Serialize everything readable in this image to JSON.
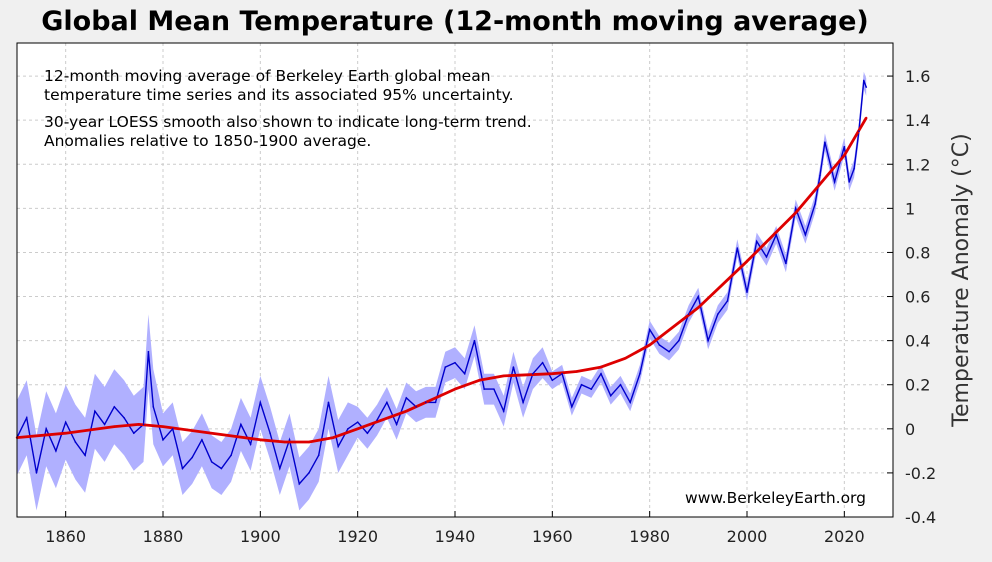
{
  "chart_data": {
    "type": "line",
    "title": "Global Mean Temperature (12-month moving average)",
    "ylabel": "Temperature Anomaly (°C)",
    "xlabel": "",
    "xlim": [
      1850,
      2030
    ],
    "ylim": [
      -0.4,
      1.75
    ],
    "x_ticks": [
      1860,
      1880,
      1900,
      1920,
      1940,
      1960,
      1980,
      2000,
      2020
    ],
    "x_tick_labels": [
      "1860",
      "1880",
      "1900",
      "1920",
      "1940",
      "1960",
      "1980",
      "2000",
      "2020"
    ],
    "y_ticks": [
      -0.4,
      -0.2,
      0,
      0.2,
      0.4,
      0.6,
      0.8,
      1,
      1.2,
      1.4,
      1.6
    ],
    "y_tick_labels": [
      "-0.4",
      "-0.2",
      "0",
      "0.2",
      "0.4",
      "0.6",
      "0.8",
      "1",
      "1.2",
      "1.4",
      "1.6"
    ],
    "grid": true,
    "annotation_lines": [
      "12-month moving average of Berkeley Earth global mean",
      "temperature time series and its associated 95% uncertainty.",
      "30-year LOESS smooth also shown to indicate long-term trend.",
      "Anomalies relative to 1850-1900 average."
    ],
    "source_label": "www.BerkeleyEarth.org",
    "colors": {
      "series": "#0000cc",
      "uncertainty": "#b0b0ff",
      "trend": "#dd0000",
      "plot_bg": "#ffffff",
      "page_bg": "#f0f0f0",
      "grid": "#cccccc"
    },
    "series": [
      {
        "role": "moving-average",
        "x": [
          1850,
          1852,
          1854,
          1856,
          1858,
          1860,
          1862,
          1864,
          1866,
          1868,
          1870,
          1872,
          1874,
          1876,
          1877,
          1878,
          1880,
          1882,
          1884,
          1886,
          1888,
          1890,
          1892,
          1894,
          1896,
          1898,
          1900,
          1902,
          1904,
          1906,
          1908,
          1910,
          1912,
          1914,
          1916,
          1918,
          1920,
          1922,
          1924,
          1926,
          1928,
          1930,
          1932,
          1934,
          1936,
          1938,
          1940,
          1942,
          1944,
          1946,
          1948,
          1950,
          1952,
          1954,
          1956,
          1958,
          1960,
          1962,
          1964,
          1966,
          1968,
          1970,
          1972,
          1974,
          1976,
          1978,
          1980,
          1982,
          1984,
          1986,
          1988,
          1990,
          1992,
          1994,
          1996,
          1998,
          2000,
          2002,
          2004,
          2006,
          2008,
          2010,
          2012,
          2014,
          2015,
          2016,
          2018,
          2020,
          2021,
          2022,
          2023,
          2024,
          2024.5
        ],
        "y": [
          -0.04,
          0.05,
          -0.2,
          0.0,
          -0.1,
          0.03,
          -0.06,
          -0.12,
          0.08,
          0.02,
          0.1,
          0.05,
          -0.02,
          0.02,
          0.35,
          0.1,
          -0.05,
          0.0,
          -0.18,
          -0.13,
          -0.05,
          -0.15,
          -0.18,
          -0.12,
          0.02,
          -0.07,
          0.12,
          -0.02,
          -0.18,
          -0.05,
          -0.25,
          -0.2,
          -0.12,
          0.12,
          -0.08,
          0.0,
          0.03,
          -0.02,
          0.04,
          0.12,
          0.02,
          0.14,
          0.1,
          0.12,
          0.12,
          0.28,
          0.3,
          0.25,
          0.4,
          0.18,
          0.18,
          0.08,
          0.28,
          0.12,
          0.25,
          0.3,
          0.22,
          0.25,
          0.1,
          0.2,
          0.18,
          0.25,
          0.15,
          0.2,
          0.12,
          0.25,
          0.45,
          0.38,
          0.35,
          0.4,
          0.52,
          0.6,
          0.4,
          0.52,
          0.58,
          0.82,
          0.62,
          0.85,
          0.78,
          0.88,
          0.75,
          1.0,
          0.88,
          1.02,
          1.15,
          1.3,
          1.12,
          1.28,
          1.12,
          1.18,
          1.35,
          1.58,
          1.55
        ]
      },
      {
        "role": "trend",
        "x": [
          1850,
          1860,
          1870,
          1875,
          1880,
          1890,
          1900,
          1905,
          1910,
          1915,
          1920,
          1930,
          1940,
          1945,
          1950,
          1960,
          1965,
          1970,
          1975,
          1980,
          1990,
          2000,
          2010,
          2020,
          2024.5
        ],
        "y": [
          -0.04,
          -0.02,
          0.01,
          0.02,
          0.01,
          -0.02,
          -0.05,
          -0.06,
          -0.06,
          -0.04,
          0.0,
          0.08,
          0.18,
          0.22,
          0.24,
          0.25,
          0.26,
          0.28,
          0.32,
          0.38,
          0.55,
          0.76,
          0.98,
          1.24,
          1.41
        ]
      }
    ]
  }
}
